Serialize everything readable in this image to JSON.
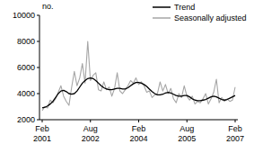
{
  "chart_data": {
    "type": "line",
    "y_label": "no.",
    "categories": [
      "Feb 2001",
      null,
      null,
      null,
      null,
      null,
      null,
      null,
      null,
      null,
      null,
      null,
      null,
      null,
      null,
      null,
      null,
      null,
      "Aug 2002",
      null,
      null,
      null,
      null,
      null,
      null,
      null,
      null,
      null,
      null,
      null,
      null,
      null,
      null,
      null,
      null,
      null,
      "Feb 2004",
      null,
      null,
      null,
      null,
      null,
      null,
      null,
      null,
      null,
      null,
      null,
      null,
      null,
      null,
      null,
      null,
      null,
      "Aug 2005",
      null,
      null,
      null,
      null,
      null,
      null,
      null,
      null,
      null,
      null,
      null,
      null,
      null,
      null,
      null,
      null,
      null,
      "Feb 2007"
    ],
    "series": [
      {
        "name": "Trend",
        "color": "#000000",
        "values": [
          2900,
          2950,
          3050,
          3200,
          3400,
          3700,
          4000,
          4200,
          4250,
          4150,
          4000,
          3950,
          4000,
          4200,
          4500,
          4800,
          5000,
          5150,
          5200,
          5150,
          5000,
          4800,
          4600,
          4450,
          4350,
          4300,
          4300,
          4350,
          4400,
          4400,
          4350,
          4350,
          4450,
          4600,
          4750,
          4850,
          4850,
          4800,
          4700,
          4550,
          4350,
          4150,
          4000,
          3900,
          3900,
          3950,
          4050,
          4100,
          4050,
          3950,
          3850,
          3800,
          3800,
          3850,
          3850,
          3750,
          3600,
          3500,
          3450,
          3450,
          3500,
          3550,
          3650,
          3750,
          3800,
          3750,
          3650,
          3550,
          3500,
          3550,
          3650,
          3750,
          3850
        ]
      },
      {
        "name": "Seasonally adjusted",
        "color": "#a6a6a6",
        "values": [
          2700,
          3000,
          2900,
          3500,
          3300,
          3600,
          4100,
          4600,
          3800,
          3400,
          3100,
          4500,
          5700,
          4600,
          5200,
          6300,
          4800,
          8000,
          5000,
          5400,
          5600,
          4300,
          4200,
          4900,
          4300,
          4500,
          3800,
          4400,
          5600,
          4200,
          4000,
          4300,
          4600,
          5000,
          4800,
          5200,
          4700,
          4900,
          4600,
          4100,
          4200,
          3700,
          3900,
          4000,
          4900,
          4200,
          4700,
          4000,
          4400,
          3600,
          3300,
          4000,
          3700,
          4600,
          3800,
          3500,
          3800,
          3200,
          3400,
          3300,
          3600,
          4000,
          3200,
          3600,
          4100,
          5100,
          3300,
          3700,
          3400,
          3600,
          3400,
          3500,
          4500
        ]
      }
    ],
    "ylim": [
      2000,
      10000
    ],
    "yticks": [
      2000,
      4000,
      6000,
      8000,
      10000
    ],
    "grid": false,
    "legend": "top-right"
  }
}
